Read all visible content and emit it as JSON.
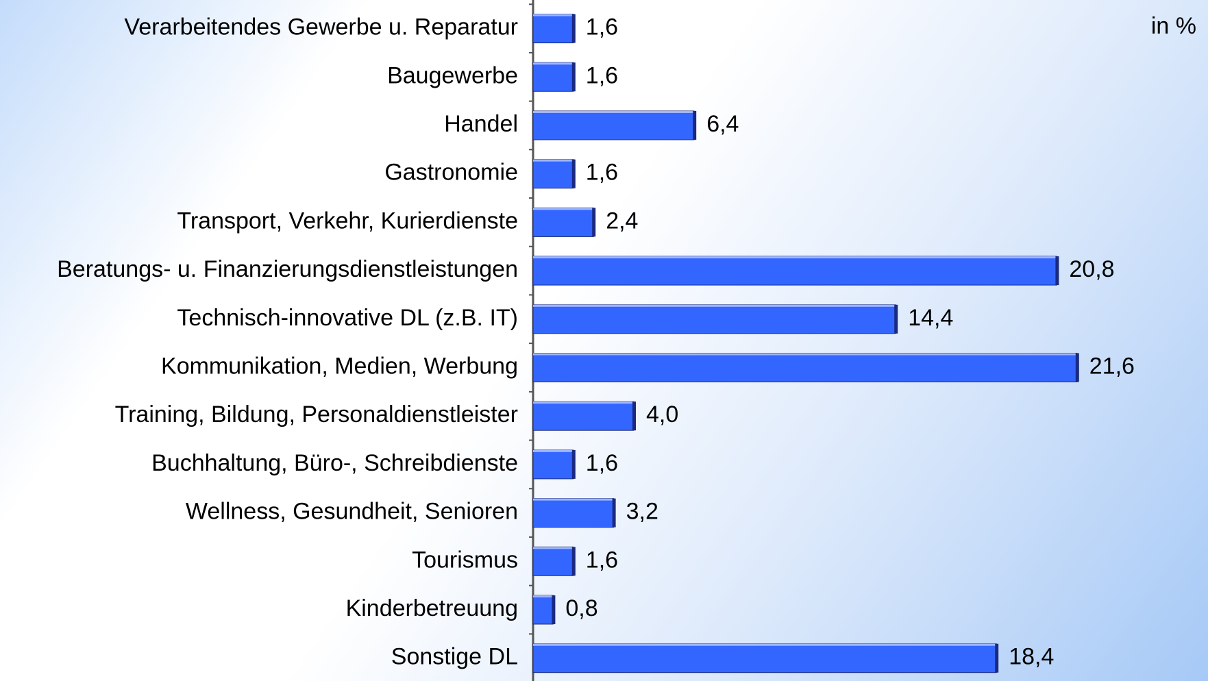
{
  "chart_data": {
    "type": "bar",
    "orientation": "horizontal",
    "annotation": "in %",
    "categories": [
      "Verarbeitendes Gewerbe u. Reparatur",
      "Baugewerbe",
      "Handel",
      "Gastronomie",
      "Transport, Verkehr, Kurierdienste",
      "Beratungs- u.  Finanzierungsdienstleistungen",
      "Technisch-innovative DL (z.B. IT)",
      "Kommunikation, Medien, Werbung",
      "Training, Bildung, Personaldienstleister",
      "Buchhaltung, Büro-, Schreibdienste",
      "Wellness, Gesundheit, Senioren",
      "Tourismus",
      "Kinderbetreuung",
      "Sonstige DL"
    ],
    "values": [
      1.6,
      1.6,
      6.4,
      1.6,
      2.4,
      20.8,
      14.4,
      21.6,
      4.0,
      1.6,
      3.2,
      1.6,
      0.8,
      18.4
    ],
    "value_labels": [
      "1,6",
      "1,6",
      "6,4",
      "1,6",
      "2,4",
      "20,8",
      "14,4",
      "21,6",
      "4,0",
      "1,6",
      "3,2",
      "1,6",
      "0,8",
      "18,4"
    ],
    "color": "#3366ff"
  }
}
